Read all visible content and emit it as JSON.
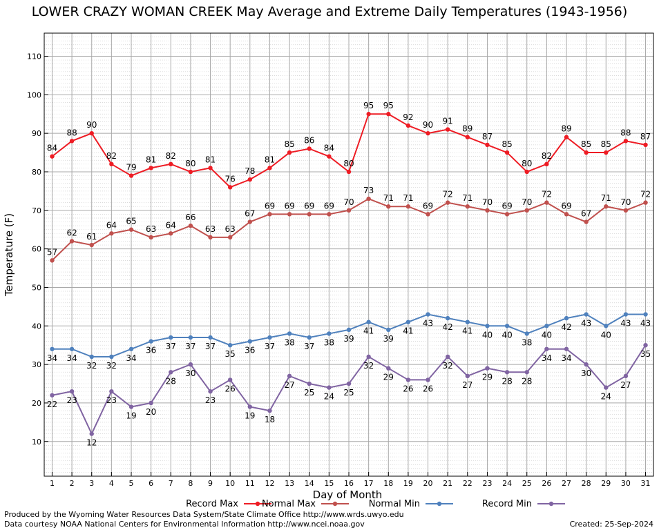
{
  "chart_data": {
    "type": "line",
    "title": "LOWER CRAZY WOMAN CREEK May Average and Extreme Daily Temperatures (1943-1956)",
    "xlabel": "Day of Month",
    "ylabel": "Temperature (F)",
    "xlim": [
      0.6,
      31.4
    ],
    "ylim": [
      1,
      116
    ],
    "y_ticks": [
      10,
      20,
      30,
      40,
      50,
      60,
      70,
      80,
      90,
      100,
      110
    ],
    "categories": [
      "1",
      "2",
      "3",
      "4",
      "5",
      "6",
      "7",
      "8",
      "9",
      "10",
      "11",
      "12",
      "13",
      "14",
      "15",
      "16",
      "17",
      "18",
      "19",
      "20",
      "21",
      "22",
      "23",
      "24",
      "25",
      "26",
      "27",
      "28",
      "29",
      "30",
      "31"
    ],
    "grid": true,
    "legend_position": "bottom",
    "series": [
      {
        "name": "Record Max",
        "color": "#ee1c24",
        "label_pos": "above",
        "values": [
          84,
          88,
          90,
          82,
          79,
          81,
          82,
          80,
          81,
          76,
          78,
          81,
          85,
          86,
          84,
          80,
          95,
          95,
          92,
          90,
          91,
          89,
          87,
          85,
          80,
          82,
          89,
          85,
          85,
          88,
          87
        ]
      },
      {
        "name": "Normal Max",
        "color": "#c0504d",
        "label_pos": "above",
        "values": [
          57,
          62,
          61,
          64,
          65,
          63,
          64,
          66,
          63,
          63,
          67,
          69,
          69,
          69,
          69,
          70,
          73,
          71,
          71,
          69,
          72,
          71,
          70,
          69,
          70,
          72,
          69,
          67,
          71,
          70,
          72
        ]
      },
      {
        "name": "Normal Min",
        "color": "#4f81bd",
        "label_pos": "below",
        "values": [
          34,
          34,
          32,
          32,
          34,
          36,
          37,
          37,
          37,
          35,
          36,
          37,
          38,
          37,
          38,
          39,
          41,
          39,
          41,
          43,
          42,
          41,
          40,
          40,
          38,
          40,
          42,
          43,
          40,
          43,
          43
        ]
      },
      {
        "name": "Record Min",
        "color": "#8064a2",
        "label_pos": "below",
        "values": [
          22,
          23,
          12,
          23,
          19,
          20,
          28,
          30,
          23,
          26,
          19,
          18,
          27,
          25,
          24,
          25,
          32,
          29,
          26,
          26,
          32,
          27,
          29,
          28,
          28,
          34,
          34,
          30,
          24,
          27,
          35
        ]
      }
    ]
  },
  "footer": {
    "credit_line_1": "Produced by the Wyoming Water Resources Data System/State Climate Office http://www.wrds.uwyo.edu",
    "credit_line_2": "Data courtesy NOAA National Centers for Environmental Information http://www.ncei.noaa.gov",
    "created": "Created:  25-Sep-2024"
  }
}
